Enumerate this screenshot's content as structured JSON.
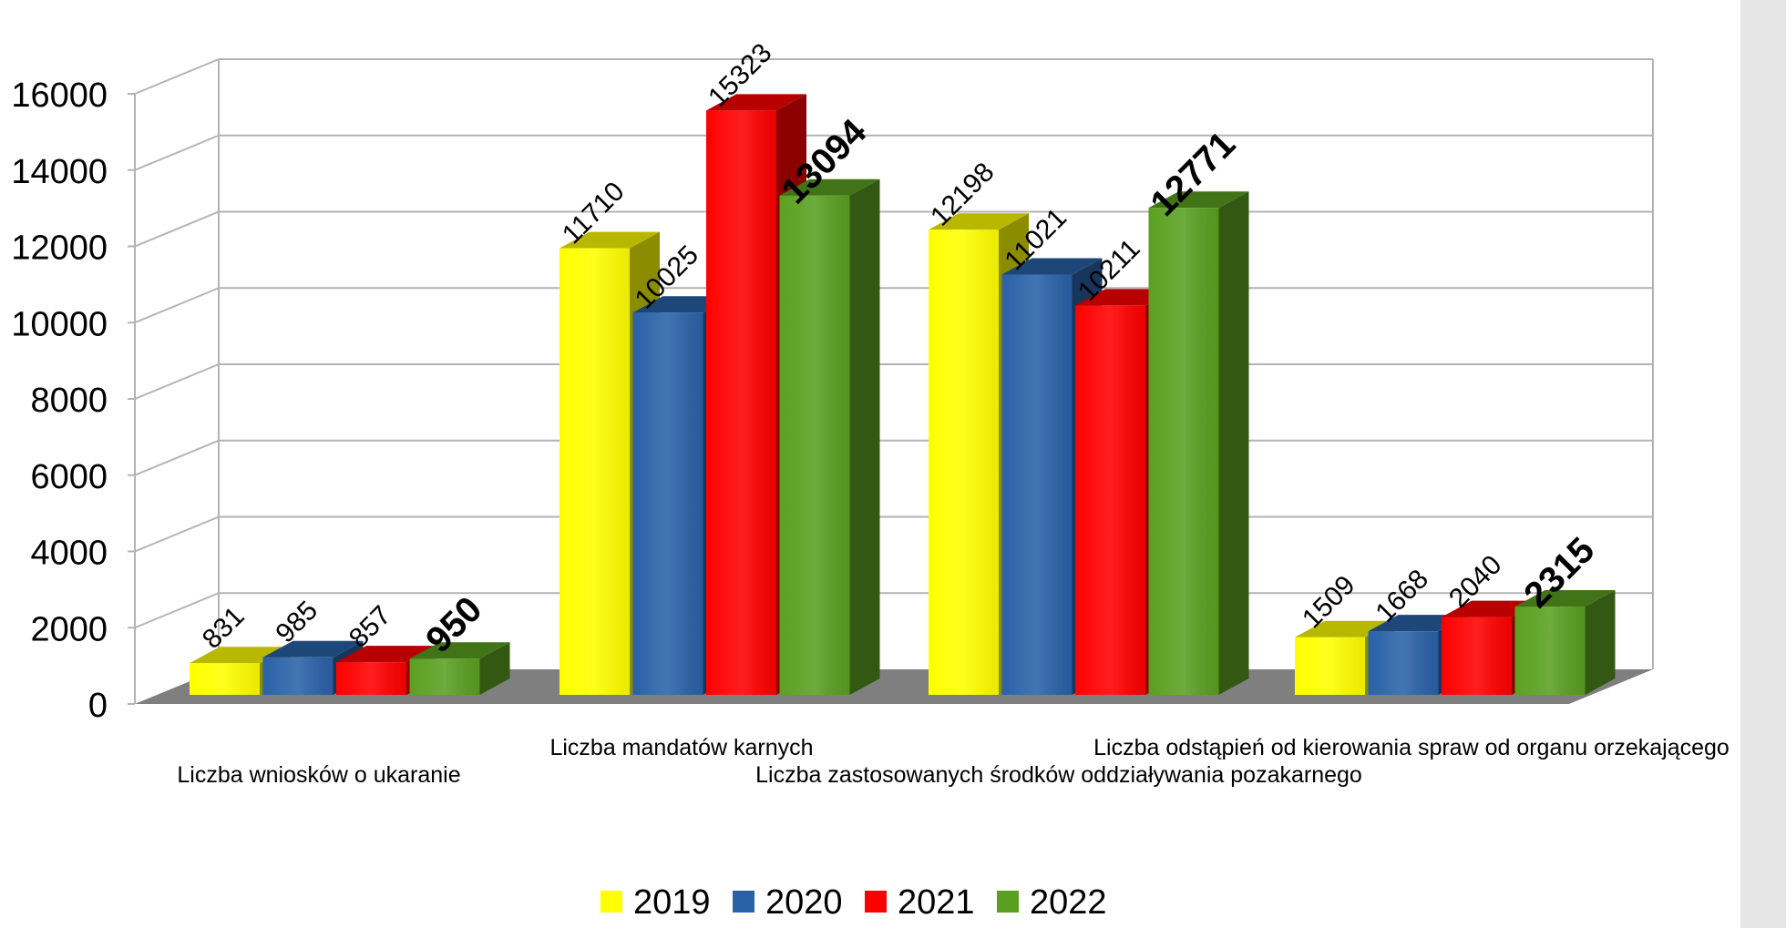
{
  "colors": {
    "2019": "#ffff00",
    "2020": "#2a62a8",
    "2021": "#ff0000",
    "2022": "#5aa020",
    "floor": "#7f7f7f",
    "grid": "#b3b3b3",
    "side_panel": "#e6e6e6"
  },
  "chart_data": {
    "type": "bar",
    "style": "3d-clustered",
    "title": "",
    "xlabel": "",
    "ylabel": "",
    "ylim": [
      0,
      16000
    ],
    "yticks": [
      0,
      2000,
      4000,
      6000,
      8000,
      10000,
      12000,
      14000,
      16000
    ],
    "grid": true,
    "legend": "bottom-center",
    "categories": [
      "Liczba wniosków o ukaranie",
      "Liczba mandatów karnych",
      "Liczba zastosowanych środków oddziaływania pozakarnego",
      "Liczba odstąpień od kierowania spraw od organu orzekającego"
    ],
    "series": [
      {
        "name": "2019",
        "values": [
          831,
          11710,
          12198,
          1509
        ]
      },
      {
        "name": "2020",
        "values": [
          985,
          10025,
          11021,
          1668
        ]
      },
      {
        "name": "2021",
        "values": [
          857,
          15323,
          10211,
          2040
        ]
      },
      {
        "name": "2022",
        "values": [
          950,
          13094,
          12771,
          2315
        ]
      }
    ],
    "bold_series": "2022"
  }
}
